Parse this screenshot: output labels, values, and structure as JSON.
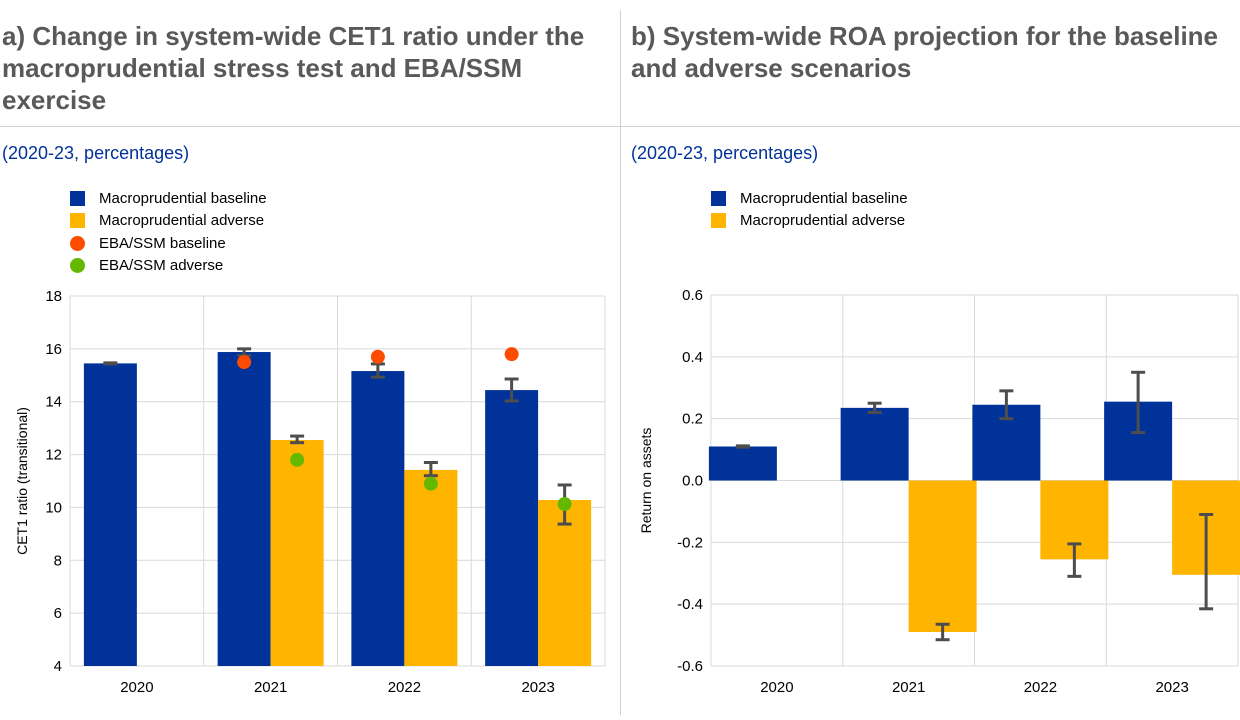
{
  "chart_data": [
    {
      "type": "bar",
      "title": "a) Change in system-wide CET1 ratio under the macroprudential stress test and EBA/SSM exercise",
      "subtitle": "(2020-23, percentages)",
      "xlabel": "",
      "ylabel": "CET1 ratio (transitional)",
      "ylim": [
        4,
        18
      ],
      "yticks": [
        "4",
        "6",
        "8",
        "10",
        "12",
        "14",
        "16",
        "18"
      ],
      "categories": [
        "2020",
        "2021",
        "2022",
        "2023"
      ],
      "grid": true,
      "legend_position": "top-left",
      "series": [
        {
          "name": "Macroprudential baseline",
          "kind": "bar",
          "color": "#003299",
          "values": [
            15.45,
            15.88,
            15.16,
            14.44
          ],
          "error_low": [
            15.43,
            15.75,
            14.93,
            14.03
          ],
          "error_high": [
            15.47,
            16.0,
            15.43,
            14.86
          ]
        },
        {
          "name": "Macroprudential adverse",
          "kind": "bar",
          "color": "#FFB400",
          "values": [
            null,
            12.55,
            11.42,
            10.28
          ],
          "error_low": [
            null,
            12.45,
            11.2,
            9.37
          ],
          "error_high": [
            null,
            12.7,
            11.7,
            10.85
          ]
        },
        {
          "name": "EBA/SSM baseline",
          "kind": "dot",
          "color": "#FF4B00",
          "on": 0,
          "values": [
            null,
            15.5,
            15.7,
            15.8
          ]
        },
        {
          "name": "EBA/SSM adverse",
          "kind": "dot",
          "color": "#65B800",
          "on": 1,
          "values": [
            null,
            11.8,
            10.9,
            10.13
          ]
        }
      ]
    },
    {
      "type": "bar",
      "title": "b) System-wide ROA projection for the baseline and adverse scenarios",
      "subtitle": "(2020-23, percentages)",
      "xlabel": "",
      "ylabel": "Return on assets",
      "ylim": [
        -0.6,
        0.6
      ],
      "yticks": [
        "-0.6",
        "-0.4",
        "-0.2",
        "0.0",
        "0.2",
        "0.4",
        "0.6"
      ],
      "categories": [
        "2020",
        "2021",
        "2022",
        "2023"
      ],
      "grid": true,
      "legend_position": "top-left",
      "series": [
        {
          "name": "Macroprudential baseline",
          "kind": "bar",
          "color": "#003299",
          "values": [
            0.11,
            0.235,
            0.245,
            0.255
          ],
          "error_low": [
            0.108,
            0.22,
            0.2,
            0.155
          ],
          "error_high": [
            0.112,
            0.25,
            0.29,
            0.35
          ]
        },
        {
          "name": "Macroprudential adverse",
          "kind": "bar",
          "color": "#FFB400",
          "values": [
            null,
            -0.49,
            -0.255,
            -0.305
          ],
          "error_low": [
            null,
            -0.515,
            -0.31,
            -0.415
          ],
          "error_high": [
            null,
            -0.465,
            -0.205,
            -0.11
          ]
        }
      ]
    }
  ]
}
